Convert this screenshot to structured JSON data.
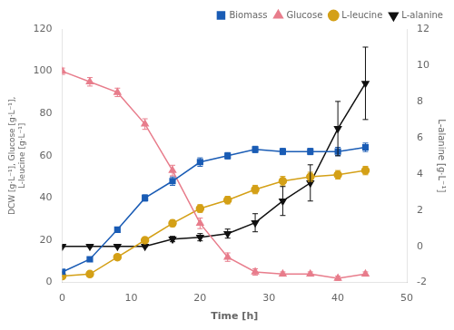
{
  "chart_data": {
    "type": "line",
    "x": [
      0,
      4,
      8,
      12,
      16,
      20,
      24,
      28,
      32,
      36,
      40,
      44
    ],
    "series": [
      {
        "name": "Biomass",
        "color": "#1a5cb5",
        "marker": "square",
        "axis": "y",
        "values": [
          5,
          11,
          25,
          40,
          48,
          57,
          60,
          63,
          62,
          62,
          62,
          64
        ],
        "errors": [
          0.5,
          0.8,
          1.2,
          1.5,
          2.0,
          2.0,
          1.5,
          1.5,
          1.5,
          1.5,
          2.0,
          2.0
        ]
      },
      {
        "name": "Glucose",
        "color": "#e87d8c",
        "marker": "triangle",
        "axis": "y",
        "values": [
          100,
          95,
          90,
          75,
          53,
          28,
          12,
          5,
          4,
          4,
          2,
          4
        ],
        "errors": [
          1.5,
          2.0,
          2.0,
          2.5,
          2.5,
          2.5,
          2.0,
          1.5,
          1.0,
          1.0,
          1.0,
          1.0
        ]
      },
      {
        "name": "L-leucine",
        "color": "#d4a017",
        "marker": "circle",
        "axis": "y",
        "values": [
          3,
          4,
          12,
          20,
          28,
          35,
          39,
          44,
          48,
          50,
          51,
          53
        ],
        "errors": [
          0.4,
          0.5,
          0.8,
          1.2,
          1.5,
          1.8,
          1.8,
          2.0,
          2.2,
          2.2,
          2.0,
          2.0
        ]
      },
      {
        "name": "L-alanine",
        "color": "#111111",
        "marker": "triangle_down",
        "axis": "y2",
        "values": [
          0.0,
          0.0,
          0.0,
          0.0,
          0.4,
          0.5,
          0.7,
          1.3,
          2.5,
          3.5,
          6.5,
          9.0
        ],
        "errors": [
          0.05,
          0.05,
          0.05,
          0.05,
          0.15,
          0.2,
          0.25,
          0.5,
          0.8,
          1.0,
          1.5,
          2.0
        ]
      }
    ],
    "xlabel": "Time [h]",
    "ylabel": "DCW [g·L⁻¹], Glucose [g·L⁻¹],\nL-leucine [g·L⁻¹]",
    "y2label": "L-alanine [g·L⁻¹]",
    "xlim": [
      0,
      50
    ],
    "xticks": [
      0,
      10,
      20,
      30,
      40,
      50
    ],
    "ylim": [
      0,
      120
    ],
    "yticks": [
      0,
      20,
      40,
      60,
      80,
      100,
      120
    ],
    "y2lim": [
      -2,
      12
    ],
    "y2ticks": [
      -2,
      0,
      2,
      4,
      6,
      8,
      10,
      12
    ],
    "grid": false,
    "legend": "upper right"
  }
}
